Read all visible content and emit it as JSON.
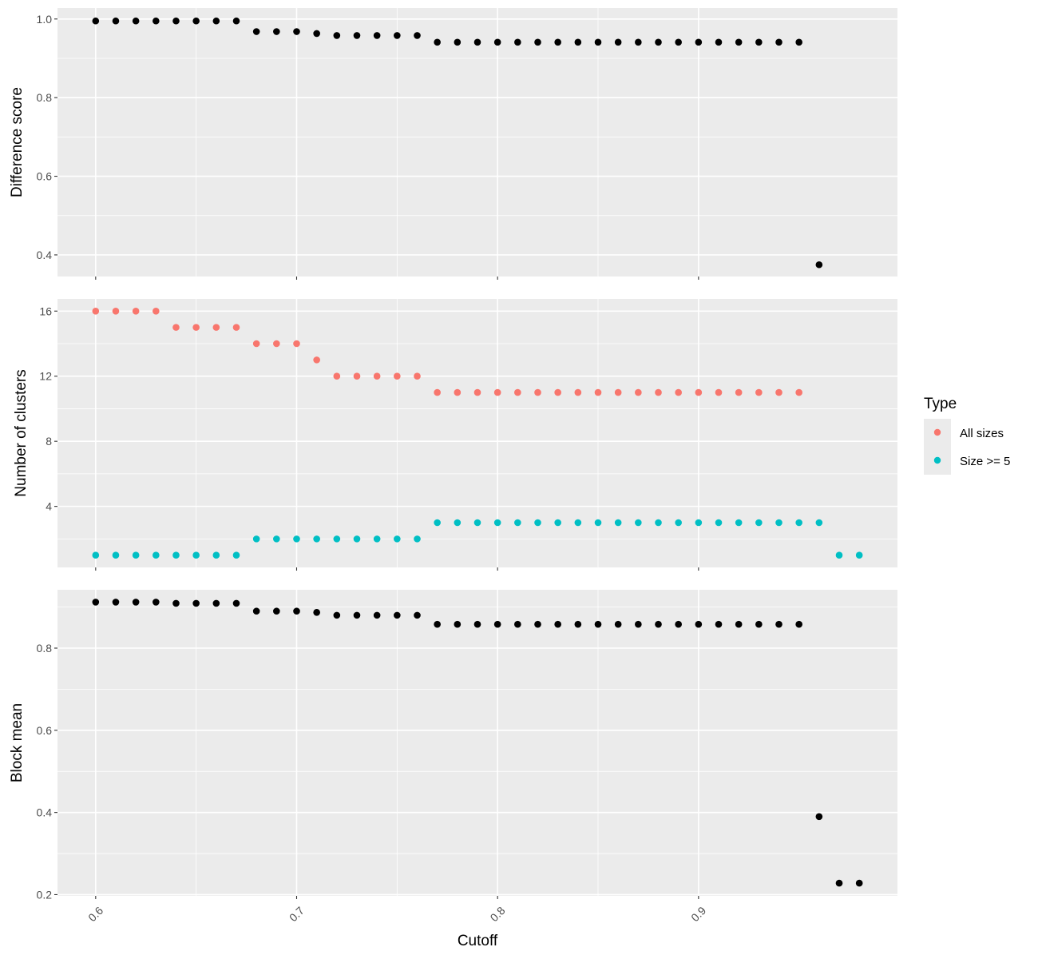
{
  "chart_data": {
    "type": "scatter",
    "xlabel": "Cutoff",
    "x_ticks": [
      "0.6",
      "0.7",
      "0.8",
      "0.9"
    ],
    "x_tick_values": [
      0.6,
      0.7,
      0.8,
      0.9
    ],
    "xlim": [
      0.581,
      0.999
    ],
    "grid": true,
    "legend": {
      "title": "Type",
      "placement": "right",
      "entries": [
        {
          "label": "All sizes",
          "color": "#F8766D"
        },
        {
          "label": "Size >= 5",
          "color": "#00BFC4"
        }
      ]
    },
    "panels": [
      {
        "id": "difference",
        "ylabel": "Difference score",
        "ylim": [
          0.345,
          1.028
        ],
        "y_ticks": [
          "0.4",
          "0.6",
          "0.8",
          "1.0"
        ],
        "y_tick_values": [
          0.4,
          0.6,
          0.8,
          1.0
        ],
        "y_minor": [
          0.5,
          0.7,
          0.9
        ],
        "series": [
          {
            "color": "#000000",
            "x": [
              0.6,
              0.61,
              0.62,
              0.63,
              0.64,
              0.65,
              0.66,
              0.67,
              0.68,
              0.69,
              0.7,
              0.71,
              0.72,
              0.73,
              0.74,
              0.75,
              0.76,
              0.77,
              0.78,
              0.79,
              0.8,
              0.81,
              0.82,
              0.83,
              0.84,
              0.85,
              0.86,
              0.87,
              0.88,
              0.89,
              0.9,
              0.91,
              0.92,
              0.93,
              0.94,
              0.95,
              0.96
            ],
            "y": [
              0.995,
              0.995,
              0.995,
              0.995,
              0.995,
              0.995,
              0.995,
              0.995,
              0.968,
              0.968,
              0.968,
              0.963,
              0.958,
              0.958,
              0.958,
              0.958,
              0.958,
              0.941,
              0.941,
              0.941,
              0.941,
              0.941,
              0.941,
              0.941,
              0.941,
              0.941,
              0.941,
              0.941,
              0.941,
              0.941,
              0.941,
              0.941,
              0.941,
              0.941,
              0.941,
              0.941,
              0.375
            ]
          }
        ]
      },
      {
        "id": "clusters",
        "ylabel": "Number of clusters",
        "ylim": [
          0.25,
          16.75
        ],
        "y_ticks": [
          "4",
          "8",
          "12",
          "16"
        ],
        "y_tick_values": [
          4,
          8,
          12,
          16
        ],
        "y_minor": [
          2,
          6,
          10,
          14
        ],
        "series": [
          {
            "name": "All sizes",
            "color": "#F8766D",
            "x": [
              0.6,
              0.61,
              0.62,
              0.63,
              0.64,
              0.65,
              0.66,
              0.67,
              0.68,
              0.69,
              0.7,
              0.71,
              0.72,
              0.73,
              0.74,
              0.75,
              0.76,
              0.77,
              0.78,
              0.79,
              0.8,
              0.81,
              0.82,
              0.83,
              0.84,
              0.85,
              0.86,
              0.87,
              0.88,
              0.89,
              0.9,
              0.91,
              0.92,
              0.93,
              0.94,
              0.95
            ],
            "y": [
              16,
              16,
              16,
              16,
              15,
              15,
              15,
              15,
              14,
              14,
              14,
              13,
              12,
              12,
              12,
              12,
              12,
              11,
              11,
              11,
              11,
              11,
              11,
              11,
              11,
              11,
              11,
              11,
              11,
              11,
              11,
              11,
              11,
              11,
              11,
              11
            ]
          },
          {
            "name": "Size >= 5",
            "color": "#00BFC4",
            "x": [
              0.6,
              0.61,
              0.62,
              0.63,
              0.64,
              0.65,
              0.66,
              0.67,
              0.68,
              0.69,
              0.7,
              0.71,
              0.72,
              0.73,
              0.74,
              0.75,
              0.76,
              0.77,
              0.78,
              0.79,
              0.8,
              0.81,
              0.82,
              0.83,
              0.84,
              0.85,
              0.86,
              0.87,
              0.88,
              0.89,
              0.9,
              0.91,
              0.92,
              0.93,
              0.94,
              0.95,
              0.96,
              0.97,
              0.98
            ],
            "y": [
              1,
              1,
              1,
              1,
              1,
              1,
              1,
              1,
              2,
              2,
              2,
              2,
              2,
              2,
              2,
              2,
              2,
              3,
              3,
              3,
              3,
              3,
              3,
              3,
              3,
              3,
              3,
              3,
              3,
              3,
              3,
              3,
              3,
              3,
              3,
              3,
              3,
              1,
              1
            ]
          }
        ]
      },
      {
        "id": "blockmean",
        "ylabel": "Block mean",
        "ylim": [
          0.197,
          0.942
        ],
        "y_ticks": [
          "0.2",
          "0.4",
          "0.6",
          "0.8"
        ],
        "y_tick_values": [
          0.2,
          0.4,
          0.6,
          0.8
        ],
        "y_minor": [
          0.3,
          0.5,
          0.7,
          0.9
        ],
        "series": [
          {
            "color": "#000000",
            "x": [
              0.6,
              0.61,
              0.62,
              0.63,
              0.64,
              0.65,
              0.66,
              0.67,
              0.68,
              0.69,
              0.7,
              0.71,
              0.72,
              0.73,
              0.74,
              0.75,
              0.76,
              0.77,
              0.78,
              0.79,
              0.8,
              0.81,
              0.82,
              0.83,
              0.84,
              0.85,
              0.86,
              0.87,
              0.88,
              0.89,
              0.9,
              0.91,
              0.92,
              0.93,
              0.94,
              0.95,
              0.96,
              0.97,
              0.98
            ],
            "y": [
              0.912,
              0.912,
              0.912,
              0.912,
              0.909,
              0.909,
              0.909,
              0.909,
              0.89,
              0.89,
              0.89,
              0.887,
              0.88,
              0.88,
              0.88,
              0.88,
              0.88,
              0.858,
              0.858,
              0.858,
              0.858,
              0.858,
              0.858,
              0.858,
              0.858,
              0.858,
              0.858,
              0.858,
              0.858,
              0.858,
              0.858,
              0.858,
              0.858,
              0.858,
              0.858,
              0.858,
              0.39,
              0.228,
              0.228
            ]
          }
        ]
      }
    ]
  }
}
